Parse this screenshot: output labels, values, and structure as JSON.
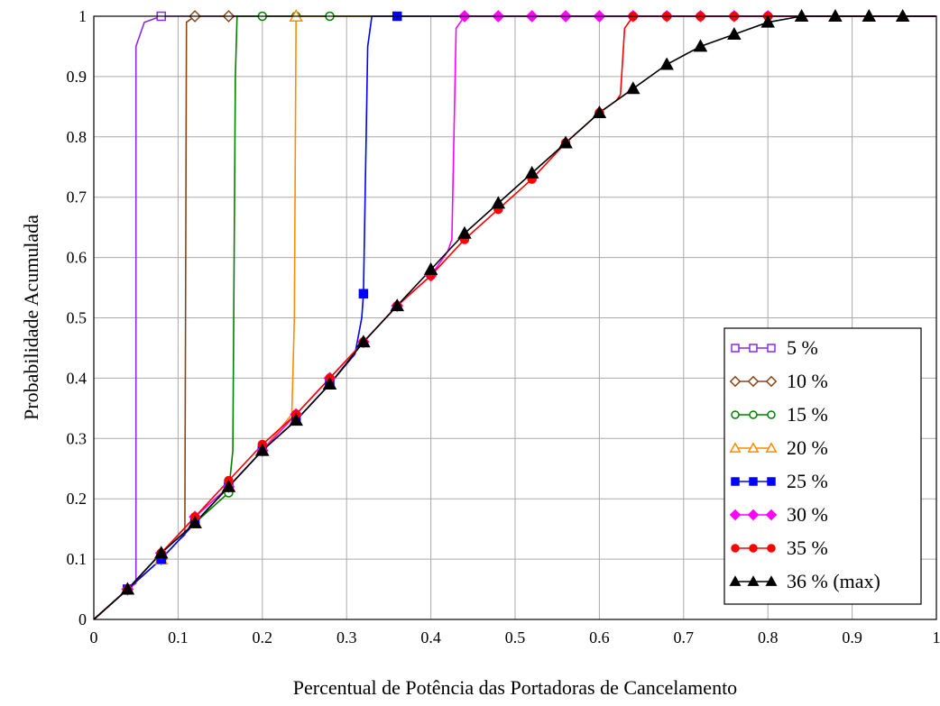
{
  "chart_data": {
    "type": "line",
    "title": "",
    "xlabel": "Percentual de Potência das Portadoras de Cancelamento",
    "ylabel": "Probabilidade Acumulada",
    "xlim": [
      0,
      1
    ],
    "ylim": [
      0,
      1
    ],
    "x_ticks": [
      "0",
      "0.1",
      "0.2",
      "0.3",
      "0.4",
      "0.5",
      "0.6",
      "0.7",
      "0.8",
      "0.9",
      "1"
    ],
    "y_ticks": [
      "0",
      "0.1",
      "0.2",
      "0.3",
      "0.4",
      "0.5",
      "0.6",
      "0.7",
      "0.8",
      "0.9",
      "1"
    ],
    "grid": true,
    "legend_position": "bottom-right",
    "series": [
      {
        "name": "5 %",
        "color": "#8a2be2",
        "marker": "square-open",
        "x": [
          0,
          0.04,
          0.05,
          0.05,
          0.06,
          0.08,
          0.12,
          0.16,
          0.2,
          0.3,
          1.0
        ],
        "y": [
          0,
          0.05,
          0.06,
          0.95,
          0.99,
          1.0,
          1.0,
          1.0,
          1.0,
          1.0,
          1.0
        ],
        "marker_x": [
          0.04,
          0.08
        ]
      },
      {
        "name": "10 %",
        "color": "#8b4513",
        "marker": "diamond-open",
        "x": [
          0,
          0.04,
          0.08,
          0.1,
          0.108,
          0.11,
          0.12,
          0.16,
          0.2,
          1.0
        ],
        "y": [
          0,
          0.05,
          0.1,
          0.13,
          0.14,
          0.99,
          1.0,
          1.0,
          1.0,
          1.0
        ],
        "marker_x": [
          0.04,
          0.08,
          0.12,
          0.16
        ]
      },
      {
        "name": "15 %",
        "color": "#008000",
        "marker": "circle-open",
        "x": [
          0,
          0.04,
          0.08,
          0.12,
          0.16,
          0.165,
          0.168,
          0.17,
          0.2,
          0.24,
          0.28,
          0.32,
          1.0
        ],
        "y": [
          0,
          0.05,
          0.1,
          0.16,
          0.21,
          0.28,
          0.9,
          1.0,
          1.0,
          1.0,
          1.0,
          1.0,
          1.0
        ],
        "marker_x": [
          0.04,
          0.08,
          0.12,
          0.16,
          0.2,
          0.24,
          0.28
        ]
      },
      {
        "name": "20 %",
        "color": "#ff8c00",
        "marker": "triangle-open",
        "x": [
          0,
          0.04,
          0.08,
          0.12,
          0.16,
          0.2,
          0.235,
          0.238,
          0.24,
          0.28,
          0.32,
          1.0
        ],
        "y": [
          0,
          0.05,
          0.1,
          0.16,
          0.22,
          0.28,
          0.34,
          0.5,
          1.0,
          1.0,
          1.0,
          1.0
        ],
        "marker_x": [
          0.04,
          0.08,
          0.12,
          0.16,
          0.2,
          0.24
        ]
      },
      {
        "name": "25 %",
        "color": "#0000ff",
        "marker": "square-filled",
        "x": [
          0,
          0.04,
          0.08,
          0.12,
          0.16,
          0.2,
          0.24,
          0.28,
          0.31,
          0.318,
          0.32,
          0.325,
          0.33,
          0.34,
          0.36,
          0.4,
          0.44,
          1.0
        ],
        "y": [
          0,
          0.05,
          0.1,
          0.16,
          0.22,
          0.28,
          0.33,
          0.39,
          0.44,
          0.5,
          0.54,
          0.95,
          1.0,
          1.0,
          1.0,
          1.0,
          1.0,
          1.0
        ],
        "marker_x": [
          0.04,
          0.08,
          0.12,
          0.16,
          0.2,
          0.24,
          0.28,
          0.32,
          0.36
        ]
      },
      {
        "name": "30 %",
        "color": "#ff00ff",
        "marker": "diamond-filled",
        "x": [
          0,
          0.04,
          0.08,
          0.12,
          0.16,
          0.2,
          0.24,
          0.28,
          0.32,
          0.36,
          0.4,
          0.42,
          0.425,
          0.43,
          0.44,
          0.48,
          0.52,
          0.56,
          0.6,
          0.64,
          0.68,
          0.72,
          0.76,
          0.8,
          1.0
        ],
        "y": [
          0,
          0.05,
          0.11,
          0.17,
          0.22,
          0.28,
          0.34,
          0.4,
          0.46,
          0.52,
          0.57,
          0.61,
          0.63,
          0.98,
          1.0,
          1.0,
          1.0,
          1.0,
          1.0,
          1.0,
          1.0,
          1.0,
          1.0,
          1.0,
          1.0
        ],
        "marker_x": [
          0.04,
          0.08,
          0.12,
          0.16,
          0.2,
          0.24,
          0.28,
          0.32,
          0.36,
          0.4,
          0.44,
          0.48,
          0.52,
          0.56,
          0.6,
          0.64,
          0.68,
          0.72,
          0.76,
          0.8
        ]
      },
      {
        "name": "35 %",
        "color": "#ff0000",
        "marker": "circle-filled",
        "x": [
          0,
          0.04,
          0.08,
          0.12,
          0.16,
          0.2,
          0.24,
          0.28,
          0.32,
          0.36,
          0.4,
          0.44,
          0.48,
          0.52,
          0.56,
          0.6,
          0.62,
          0.625,
          0.63,
          0.64,
          0.68,
          0.72,
          0.76,
          0.8,
          0.84,
          1.0
        ],
        "y": [
          0,
          0.05,
          0.11,
          0.17,
          0.23,
          0.29,
          0.34,
          0.4,
          0.46,
          0.52,
          0.57,
          0.63,
          0.68,
          0.73,
          0.79,
          0.84,
          0.86,
          0.87,
          0.98,
          1.0,
          1.0,
          1.0,
          1.0,
          1.0,
          1.0,
          1.0
        ],
        "marker_x": [
          0.04,
          0.08,
          0.12,
          0.16,
          0.2,
          0.24,
          0.28,
          0.32,
          0.36,
          0.4,
          0.44,
          0.48,
          0.52,
          0.56,
          0.6,
          0.64,
          0.68,
          0.72,
          0.76,
          0.8
        ]
      },
      {
        "name": "36 % (max)",
        "color": "#000000",
        "marker": "triangle-filled",
        "x": [
          0,
          0.04,
          0.08,
          0.12,
          0.16,
          0.2,
          0.24,
          0.28,
          0.32,
          0.36,
          0.4,
          0.44,
          0.48,
          0.52,
          0.56,
          0.6,
          0.64,
          0.68,
          0.72,
          0.76,
          0.8,
          0.84,
          0.88,
          0.92,
          0.96,
          1.0
        ],
        "y": [
          0,
          0.05,
          0.11,
          0.16,
          0.22,
          0.28,
          0.33,
          0.39,
          0.46,
          0.52,
          0.58,
          0.64,
          0.69,
          0.74,
          0.79,
          0.84,
          0.88,
          0.92,
          0.95,
          0.97,
          0.99,
          1.0,
          1.0,
          1.0,
          1.0,
          1.0
        ],
        "marker_x": [
          0.04,
          0.08,
          0.12,
          0.16,
          0.2,
          0.24,
          0.28,
          0.32,
          0.36,
          0.4,
          0.44,
          0.48,
          0.52,
          0.56,
          0.6,
          0.64,
          0.68,
          0.72,
          0.76,
          0.8,
          0.84,
          0.88,
          0.92,
          0.96
        ]
      }
    ]
  }
}
